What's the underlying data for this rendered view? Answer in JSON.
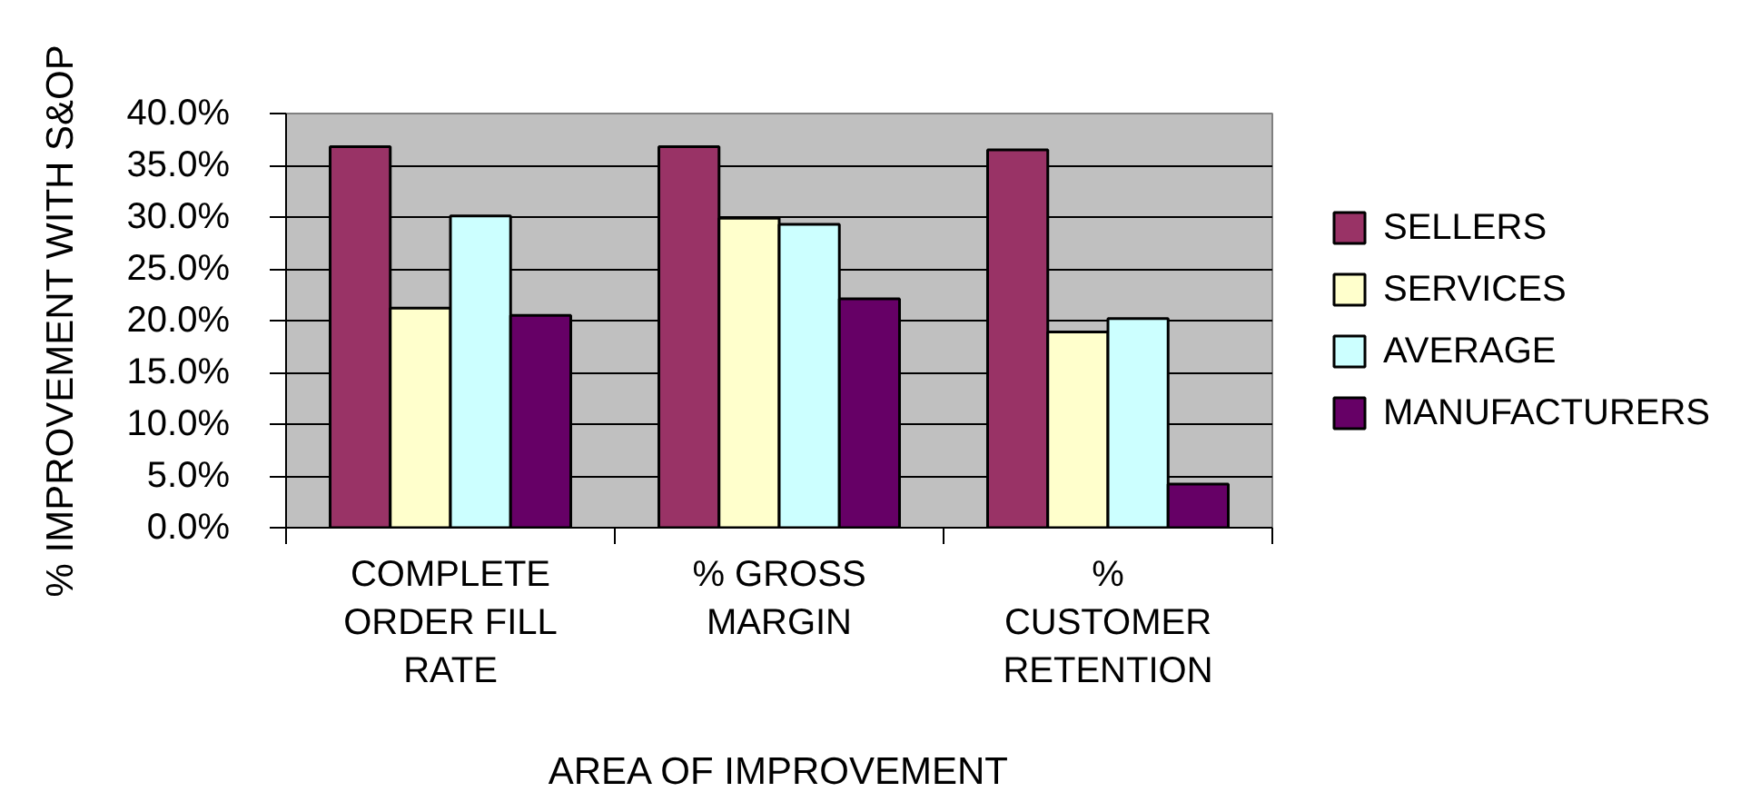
{
  "chart_data": {
    "type": "bar",
    "xlabel": "AREA OF IMPROVEMENT",
    "ylabel": "% IMPROVEMENT WITH S&OP",
    "categories": [
      "COMPLETE\nORDER FILL\nRATE",
      "% GROSS\nMARGIN",
      "%\nCUSTOMER\nRETENTION"
    ],
    "series": [
      {
        "name": "SELLERS",
        "color": "#993366",
        "values": [
          36.8,
          36.8,
          36.5
        ]
      },
      {
        "name": "SERVICES",
        "color": "#ffffcc",
        "values": [
          21.2,
          29.9,
          18.9
        ]
      },
      {
        "name": "AVERAGE",
        "color": "#ccffff",
        "values": [
          30.1,
          29.3,
          20.2
        ]
      },
      {
        "name": "MANUFACTURERS",
        "color": "#660066",
        "values": [
          20.5,
          22.1,
          4.2
        ]
      }
    ],
    "ylim": [
      0,
      40
    ],
    "yticks": [
      {
        "value": 0,
        "label": "0.0%"
      },
      {
        "value": 5,
        "label": "5.0%"
      },
      {
        "value": 10,
        "label": "10.0%"
      },
      {
        "value": 15,
        "label": "15.0%"
      },
      {
        "value": 20,
        "label": "20.0%"
      },
      {
        "value": 25,
        "label": "25.0%"
      },
      {
        "value": 30,
        "label": "30.0%"
      },
      {
        "value": 35,
        "label": "35.0%"
      },
      {
        "value": 40,
        "label": "40.0%"
      }
    ],
    "grid": "y",
    "legend": "right"
  }
}
